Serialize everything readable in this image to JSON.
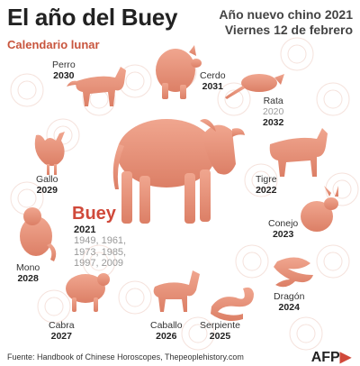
{
  "header": {
    "title": "El año del Buey",
    "subtitle": "Calendario lunar",
    "event": "Año nuevo chino 2021",
    "date": "Viernes 12 de febrero"
  },
  "featured": {
    "name": "Buey",
    "year": "2021",
    "previous_years_line1": "1949, 1961,",
    "previous_years_line2": "1973, 1985,",
    "previous_years_line3": "1997, 2009"
  },
  "zodiac": [
    {
      "name": "Perro",
      "year": "2030"
    },
    {
      "name": "Cerdo",
      "year": "2031"
    },
    {
      "name": "Rata",
      "year_alt": "2020",
      "year": "2032"
    },
    {
      "name": "Gallo",
      "year": "2029"
    },
    {
      "name": "Tigre",
      "year": "2022"
    },
    {
      "name": "Conejo",
      "year": "2023"
    },
    {
      "name": "Mono",
      "year": "2028"
    },
    {
      "name": "Dragón",
      "year": "2024"
    },
    {
      "name": "Cabra",
      "year": "2027"
    },
    {
      "name": "Caballo",
      "year": "2026"
    },
    {
      "name": "Serpiente",
      "year": "2025"
    }
  ],
  "footer": {
    "source": "Fuente: Handbook of Chinese Horoscopes, Thepeoplehistory.com",
    "logo_text": "AFP"
  },
  "colors": {
    "accent": "#d0493a",
    "animal_fill": "#e9957a",
    "pattern": "#f7e7e2"
  }
}
